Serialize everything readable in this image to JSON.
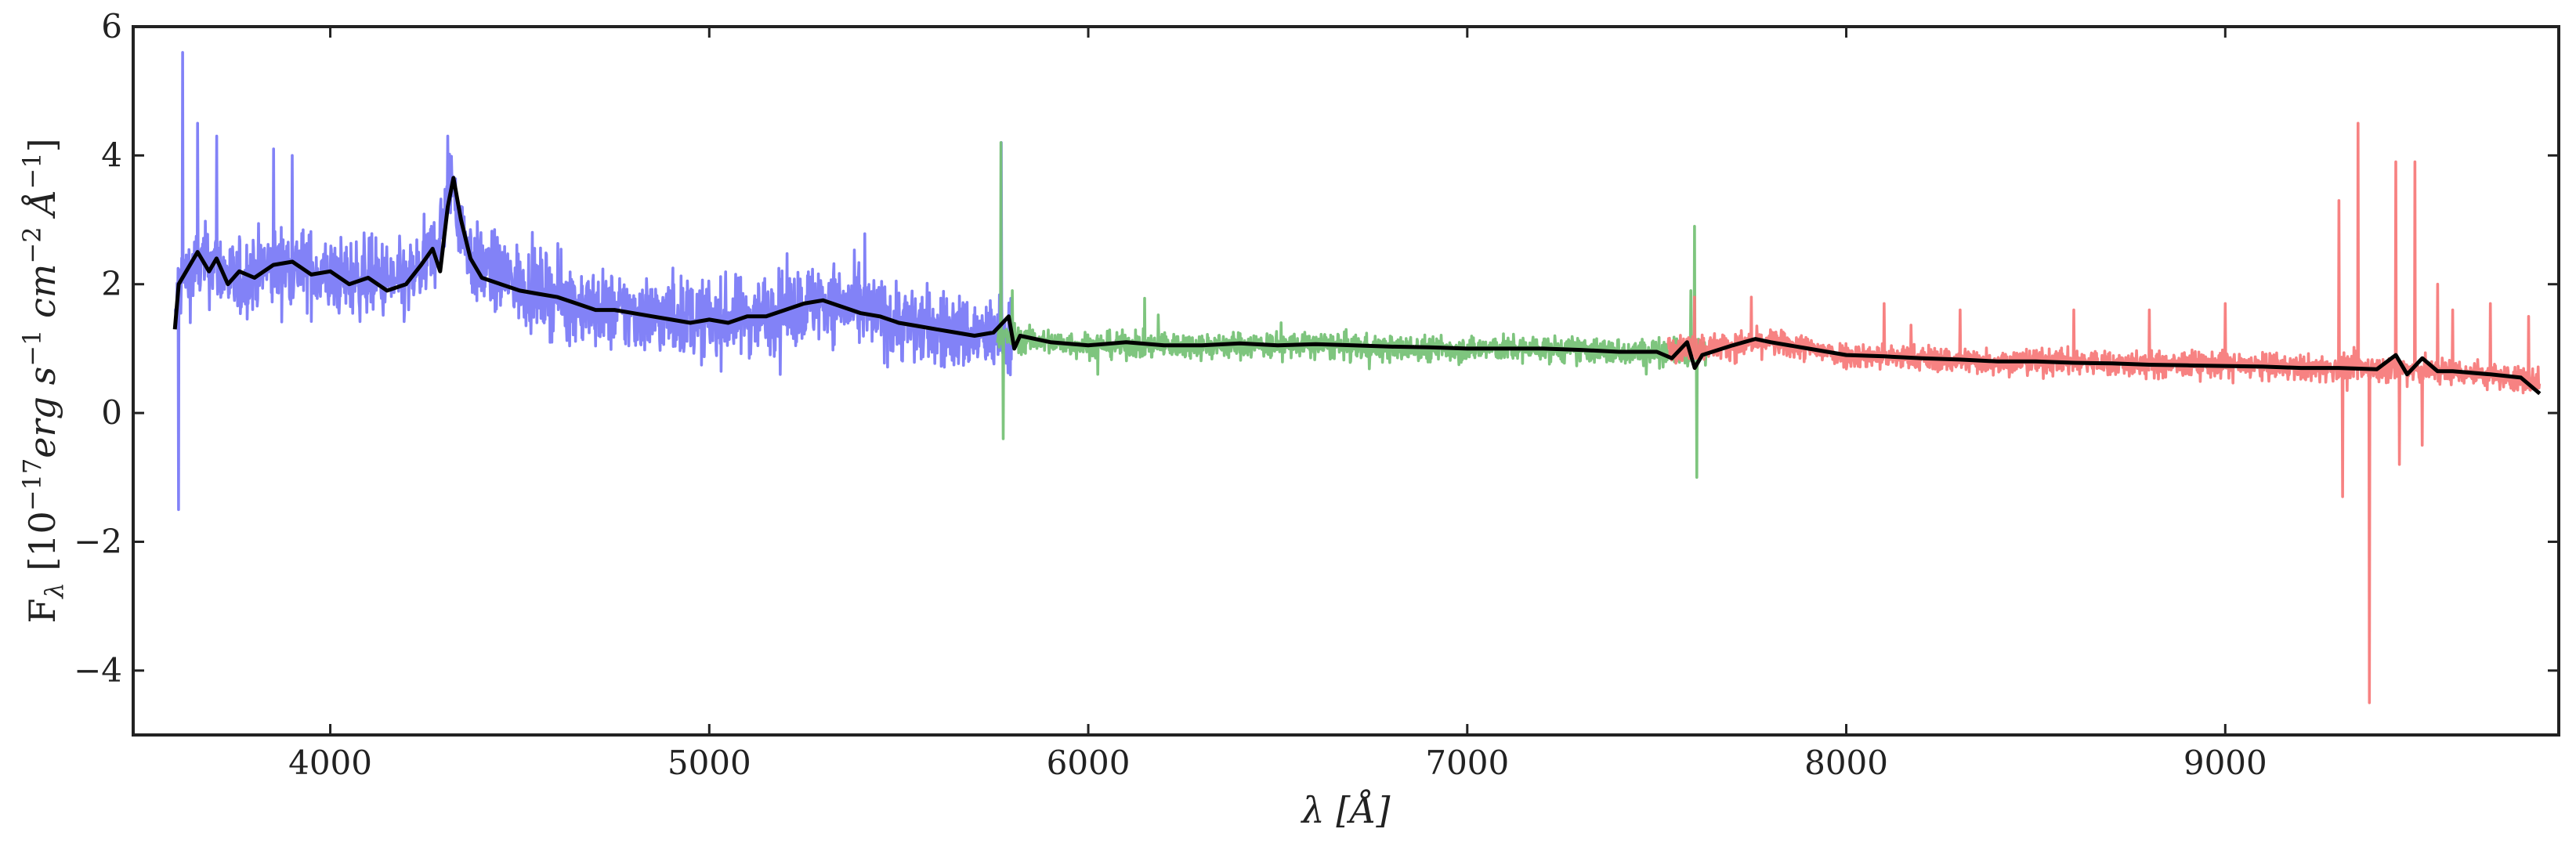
{
  "chart_data": {
    "type": "line",
    "xlabel": "λ [Å]",
    "ylabel": "F_λ [10^−17 erg s^−1 cm^−2 Å^−1]",
    "ylabel_parts": {
      "main": "F",
      "sub": "λ",
      "open": " [10",
      "exp1": "−17",
      "erg": "erg s",
      "exp2": "−1",
      "cm": " cm",
      "exp3": "−2",
      "ang": " Å",
      "exp4": "−1",
      "close": "]"
    },
    "xlim": [
      3480,
      9880
    ],
    "ylim": [
      -5,
      6
    ],
    "xticks": [
      4000,
      5000,
      6000,
      7000,
      8000,
      9000
    ],
    "yticks": [
      -4,
      -2,
      0,
      2,
      4,
      6
    ],
    "xtick_labels": [
      "4000",
      "5000",
      "6000",
      "7000",
      "8000",
      "9000"
    ],
    "ytick_labels": [
      "−4",
      "−2",
      "0",
      "2",
      "4",
      "6"
    ],
    "grid": false,
    "series": [
      {
        "color": "#7b7bf7",
        "range": [
          3590,
          5800
        ],
        "noise": 0.42,
        "spikes": [
          [
            3600,
            -1.5
          ],
          [
            3610,
            5.6
          ],
          [
            3650,
            4.5
          ],
          [
            3700,
            4.3
          ],
          [
            3850,
            4.1
          ],
          [
            3900,
            4.0
          ],
          [
            4310,
            4.3
          ],
          [
            5770,
            4.2
          ]
        ],
        "points": [
          [
            3590,
            1.3
          ],
          [
            3600,
            2.0
          ],
          [
            3650,
            2.3
          ],
          [
            3700,
            2.3
          ],
          [
            3750,
            2.0
          ],
          [
            3800,
            2.2
          ],
          [
            3900,
            2.3
          ],
          [
            4000,
            2.1
          ],
          [
            4100,
            2.1
          ],
          [
            4200,
            2.0
          ],
          [
            4250,
            2.3
          ],
          [
            4280,
            2.6
          ],
          [
            4300,
            3.0
          ],
          [
            4320,
            3.7
          ],
          [
            4340,
            3.0
          ],
          [
            4380,
            2.3
          ],
          [
            4500,
            2.0
          ],
          [
            4600,
            1.8
          ],
          [
            4700,
            1.6
          ],
          [
            4800,
            1.55
          ],
          [
            4900,
            1.5
          ],
          [
            5000,
            1.45
          ],
          [
            5100,
            1.5
          ],
          [
            5200,
            1.6
          ],
          [
            5300,
            1.75
          ],
          [
            5400,
            1.6
          ],
          [
            5500,
            1.4
          ],
          [
            5600,
            1.3
          ],
          [
            5700,
            1.2
          ],
          [
            5800,
            1.2
          ]
        ]
      },
      {
        "color": "#77c277",
        "range": [
          5760,
          7630
        ],
        "noise": 0.14,
        "spikes": [
          [
            5770,
            4.2
          ],
          [
            5775,
            -0.4
          ],
          [
            5800,
            1.9
          ],
          [
            7600,
            2.9
          ],
          [
            7605,
            -1.0
          ],
          [
            7590,
            1.9
          ]
        ],
        "points": [
          [
            5760,
            1.2
          ],
          [
            5900,
            1.1
          ],
          [
            6000,
            1.05
          ],
          [
            6200,
            1.05
          ],
          [
            6400,
            1.05
          ],
          [
            6600,
            1.05
          ],
          [
            6800,
            1.0
          ],
          [
            7000,
            1.0
          ],
          [
            7200,
            1.0
          ],
          [
            7400,
            0.95
          ],
          [
            7630,
            0.95
          ]
        ]
      },
      {
        "color": "#f77b7b",
        "range": [
          7530,
          9830
        ],
        "noise": 0.14,
        "spikes": [
          [
            7600,
            1.8
          ],
          [
            7750,
            1.8
          ],
          [
            8100,
            1.7
          ],
          [
            8300,
            1.6
          ],
          [
            8600,
            1.6
          ],
          [
            8800,
            1.6
          ],
          [
            9000,
            1.7
          ],
          [
            9300,
            3.3
          ],
          [
            9310,
            -1.3
          ],
          [
            9350,
            4.5
          ],
          [
            9380,
            -4.5
          ],
          [
            9450,
            3.9
          ],
          [
            9460,
            -0.8
          ],
          [
            9500,
            3.9
          ],
          [
            9520,
            -0.5
          ],
          [
            9560,
            2.0
          ],
          [
            9600,
            1.6
          ],
          [
            9700,
            1.7
          ],
          [
            9800,
            1.5
          ]
        ],
        "points": [
          [
            7530,
            1.0
          ],
          [
            7700,
            1.05
          ],
          [
            7800,
            1.1
          ],
          [
            7900,
            1.0
          ],
          [
            8000,
            0.9
          ],
          [
            8200,
            0.85
          ],
          [
            8400,
            0.8
          ],
          [
            8600,
            0.8
          ],
          [
            8800,
            0.75
          ],
          [
            9000,
            0.75
          ],
          [
            9200,
            0.7
          ],
          [
            9400,
            0.7
          ],
          [
            9600,
            0.65
          ],
          [
            9830,
            0.5
          ]
        ]
      }
    ],
    "smoothed_line": {
      "color": "#000000",
      "points": [
        [
          3590,
          1.3
        ],
        [
          3600,
          2.0
        ],
        [
          3620,
          2.2
        ],
        [
          3650,
          2.5
        ],
        [
          3680,
          2.2
        ],
        [
          3700,
          2.4
        ],
        [
          3730,
          2.0
        ],
        [
          3760,
          2.2
        ],
        [
          3800,
          2.1
        ],
        [
          3850,
          2.3
        ],
        [
          3900,
          2.35
        ],
        [
          3950,
          2.15
        ],
        [
          4000,
          2.2
        ],
        [
          4050,
          2.0
        ],
        [
          4100,
          2.1
        ],
        [
          4150,
          1.9
        ],
        [
          4200,
          2.0
        ],
        [
          4240,
          2.3
        ],
        [
          4270,
          2.55
        ],
        [
          4290,
          2.2
        ],
        [
          4310,
          3.2
        ],
        [
          4325,
          3.65
        ],
        [
          4345,
          3.0
        ],
        [
          4370,
          2.4
        ],
        [
          4400,
          2.1
        ],
        [
          4450,
          2.0
        ],
        [
          4500,
          1.9
        ],
        [
          4550,
          1.85
        ],
        [
          4600,
          1.8
        ],
        [
          4650,
          1.7
        ],
        [
          4700,
          1.6
        ],
        [
          4750,
          1.6
        ],
        [
          4800,
          1.55
        ],
        [
          4850,
          1.5
        ],
        [
          4900,
          1.45
        ],
        [
          4950,
          1.4
        ],
        [
          5000,
          1.45
        ],
        [
          5050,
          1.4
        ],
        [
          5100,
          1.5
        ],
        [
          5150,
          1.5
        ],
        [
          5200,
          1.6
        ],
        [
          5250,
          1.7
        ],
        [
          5300,
          1.75
        ],
        [
          5350,
          1.65
        ],
        [
          5400,
          1.55
        ],
        [
          5450,
          1.5
        ],
        [
          5500,
          1.4
        ],
        [
          5550,
          1.35
        ],
        [
          5600,
          1.3
        ],
        [
          5650,
          1.25
        ],
        [
          5700,
          1.2
        ],
        [
          5750,
          1.25
        ],
        [
          5790,
          1.5
        ],
        [
          5805,
          1.0
        ],
        [
          5820,
          1.2
        ],
        [
          5900,
          1.1
        ],
        [
          6000,
          1.05
        ],
        [
          6100,
          1.1
        ],
        [
          6200,
          1.05
        ],
        [
          6300,
          1.05
        ],
        [
          6400,
          1.08
        ],
        [
          6500,
          1.05
        ],
        [
          6600,
          1.07
        ],
        [
          6700,
          1.05
        ],
        [
          6800,
          1.03
        ],
        [
          6900,
          1.02
        ],
        [
          7000,
          1.0
        ],
        [
          7100,
          1.0
        ],
        [
          7200,
          1.0
        ],
        [
          7300,
          0.98
        ],
        [
          7400,
          0.95
        ],
        [
          7500,
          0.95
        ],
        [
          7540,
          0.85
        ],
        [
          7580,
          1.1
        ],
        [
          7600,
          0.7
        ],
        [
          7620,
          0.9
        ],
        [
          7700,
          1.05
        ],
        [
          7760,
          1.15
        ],
        [
          7800,
          1.1
        ],
        [
          7900,
          1.0
        ],
        [
          8000,
          0.9
        ],
        [
          8100,
          0.88
        ],
        [
          8200,
          0.85
        ],
        [
          8300,
          0.83
        ],
        [
          8400,
          0.8
        ],
        [
          8500,
          0.8
        ],
        [
          8600,
          0.78
        ],
        [
          8700,
          0.77
        ],
        [
          8800,
          0.75
        ],
        [
          8900,
          0.74
        ],
        [
          9000,
          0.73
        ],
        [
          9100,
          0.72
        ],
        [
          9200,
          0.7
        ],
        [
          9300,
          0.7
        ],
        [
          9400,
          0.68
        ],
        [
          9450,
          0.9
        ],
        [
          9480,
          0.6
        ],
        [
          9520,
          0.85
        ],
        [
          9560,
          0.65
        ],
        [
          9600,
          0.65
        ],
        [
          9700,
          0.6
        ],
        [
          9780,
          0.55
        ],
        [
          9830,
          0.3
        ]
      ]
    }
  }
}
